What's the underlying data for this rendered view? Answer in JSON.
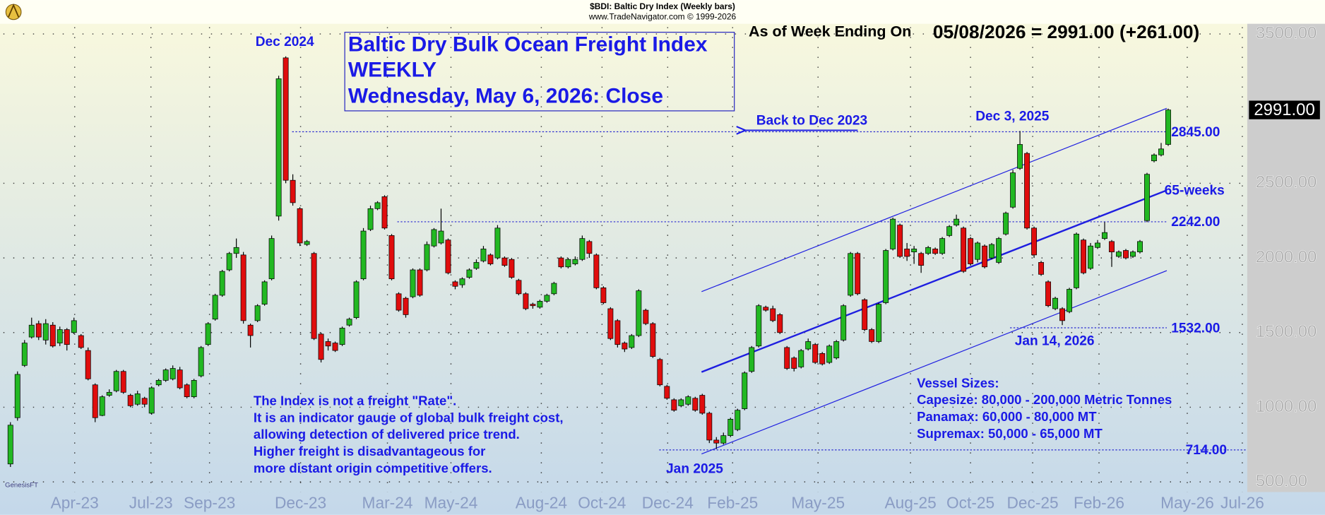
{
  "chart_data": {
    "type": "candlestick",
    "header": [
      "$BDI:  Baltic Dry Index  (Weekly bars)",
      "www.TradeNavigator.com © 1999-2026"
    ],
    "title": [
      "Baltic Dry Bulk Ocean Freight Index",
      "WEEKLY",
      "Wednesday, May 6, 2026: Close"
    ],
    "status_label": "As of Week Ending On",
    "status_value": "05/08/2026 = 2991.00 (+261.00)",
    "last_label": "2991.00",
    "watermark": "GenesisFT",
    "up_color": "#22b822",
    "down_color": "#e00d0d",
    "grid": true,
    "ylim": [
      432,
      3568
    ],
    "yticks": [
      {
        "value": 500,
        "label": "500.00"
      },
      {
        "value": 1000,
        "label": "1000.00"
      },
      {
        "value": 1500,
        "label": "1500.00"
      },
      {
        "value": 2000,
        "label": "2000.00"
      },
      {
        "value": 2500,
        "label": "2500.00"
      },
      {
        "value": 3500,
        "label": "3500.00"
      }
    ],
    "xlim": [
      -1,
      175.2
    ],
    "xticks": [
      {
        "value": 9.1,
        "label": "Apr-23"
      },
      {
        "value": 19.9,
        "label": "Jul-23"
      },
      {
        "value": 28.2,
        "label": "Sep-23"
      },
      {
        "value": 41.1,
        "label": "Dec-23"
      },
      {
        "value": 53.4,
        "label": "Mar-24"
      },
      {
        "value": 62.4,
        "label": "May-24"
      },
      {
        "value": 75.2,
        "label": "Aug-24"
      },
      {
        "value": 83.8,
        "label": "Oct-24"
      },
      {
        "value": 93.1,
        "label": "Dec-24"
      },
      {
        "value": 102.3,
        "label": "Feb-25"
      },
      {
        "value": 114.4,
        "label": "May-25"
      },
      {
        "value": 127.5,
        "label": "Aug-25"
      },
      {
        "value": 136.0,
        "label": "Oct-25"
      },
      {
        "value": 144.8,
        "label": "Dec-25"
      },
      {
        "value": 154.2,
        "label": "Feb-26"
      },
      {
        "value": 166.7,
        "label": "May-26"
      },
      {
        "value": 174.5,
        "label": "Jul-26"
      }
    ],
    "candles": {
      "open": [
        620,
        930,
        1280,
        1470,
        1560,
        1450,
        1550,
        1430,
        1520,
        1500,
        1480,
        1380,
        1150,
        945,
        1080,
        1110,
        1240,
        1080,
        1020,
        1060,
        960,
        1150,
        1180,
        1190,
        1250,
        1150,
        1070,
        1210,
        1420,
        1590,
        1750,
        1920,
        2030,
        2020,
        1550,
        1580,
        1690,
        1860,
        2280,
        3340,
        2520,
        2330,
        2090,
        2030,
        1490,
        1440,
        1430,
        1420,
        1550,
        1600,
        1860,
        2190,
        2330,
        2410,
        2150,
        1760,
        1730,
        1740,
        1920,
        1920,
        2080,
        2100,
        2120,
        1840,
        1820,
        1870,
        1930,
        1980,
        2020,
        2000,
        2000,
        1990,
        1850,
        1760,
        1690,
        1670,
        1710,
        1760,
        2000,
        1940,
        1960,
        1990,
        2110,
        2020,
        1800,
        1660,
        1580,
        1430,
        1400,
        1480,
        1650,
        1560,
        1320,
        1140,
        1050,
        1010,
        1020,
        1060,
        1080,
        960,
        780,
        760,
        810,
        850,
        990,
        1240,
        1410,
        1670,
        1660,
        1620,
        1400,
        1330,
        1270,
        1390,
        1420,
        1360,
        1300,
        1330,
        1450,
        1750,
        2030,
        1720,
        1520,
        1440,
        1700,
        2060,
        2220,
        2060,
        2040,
        2030,
        2030,
        2060,
        2030,
        2150,
        2220,
        2200,
        2130,
        1990,
        2080,
        2000,
        1970,
        2160,
        2340,
        2600,
        2700,
        2200,
        1970,
        1840,
        1660,
        1660,
        1640,
        1800,
        2120,
        1930,
        2070,
        2130,
        2110,
        2010,
        2050,
        2010,
        2040,
        2250,
        2650,
        2690,
        2760
      ],
      "high": [
        900,
        1240,
        1450,
        1600,
        1580,
        1590,
        1570,
        1540,
        1530,
        1600,
        1490,
        1400,
        1160,
        1080,
        1120,
        1250,
        1250,
        1090,
        1110,
        1070,
        1140,
        1190,
        1260,
        1280,
        1270,
        1160,
        1190,
        1410,
        1570,
        1760,
        1920,
        2040,
        2130,
        2040,
        1560,
        1690,
        1850,
        2150,
        3220,
        3350,
        2560,
        2340,
        2120,
        2040,
        1500,
        1460,
        1440,
        1540,
        1600,
        1850,
        2200,
        2350,
        2380,
        2420,
        2160,
        1770,
        1740,
        1930,
        1930,
        2110,
        2200,
        2330,
        2130,
        1850,
        1870,
        1930,
        1990,
        2080,
        2030,
        2220,
        2010,
        2000,
        1860,
        1770,
        1700,
        1720,
        1760,
        1840,
        2010,
        2000,
        2010,
        2150,
        2120,
        2030,
        1810,
        1670,
        1590,
        1440,
        1490,
        1790,
        1660,
        1570,
        1330,
        1150,
        1060,
        1060,
        1080,
        1070,
        1090,
        970,
        800,
        830,
        930,
        990,
        1240,
        1410,
        1690,
        1680,
        1680,
        1630,
        1410,
        1340,
        1390,
        1460,
        1430,
        1370,
        1420,
        1450,
        1690,
        2040,
        2040,
        1730,
        1530,
        1700,
        2060,
        2270,
        2230,
        2100,
        2080,
        2040,
        2080,
        2070,
        2140,
        2220,
        2290,
        2210,
        2140,
        2110,
        2090,
        2100,
        2140,
        2310,
        2590,
        2850,
        2710,
        2210,
        1980,
        1850,
        1740,
        1670,
        1800,
        2170,
        2130,
        2100,
        2120,
        2240,
        2120,
        2050,
        2060,
        2050,
        2120,
        2570,
        2700,
        2770,
        3000
      ],
      "low": [
        600,
        910,
        1270,
        1460,
        1450,
        1420,
        1400,
        1410,
        1380,
        1490,
        1390,
        1180,
        900,
        940,
        1070,
        1100,
        1090,
        1000,
        1010,
        1000,
        950,
        1140,
        1170,
        1180,
        1120,
        1060,
        1060,
        1200,
        1410,
        1580,
        1740,
        1910,
        2000,
        1560,
        1400,
        1570,
        1680,
        1850,
        2250,
        2500,
        2350,
        2080,
        2080,
        1450,
        1300,
        1380,
        1370,
        1410,
        1540,
        1590,
        1850,
        2180,
        2320,
        2190,
        1850,
        1640,
        1600,
        1730,
        1740,
        1910,
        2070,
        2090,
        1890,
        1790,
        1800,
        1860,
        1920,
        1970,
        1950,
        1990,
        1940,
        1860,
        1750,
        1650,
        1660,
        1660,
        1700,
        1750,
        1930,
        1930,
        1950,
        1980,
        2000,
        1790,
        1690,
        1450,
        1400,
        1370,
        1390,
        1470,
        1550,
        1330,
        1140,
        1050,
        970,
        1000,
        1010,
        970,
        950,
        760,
        720,
        750,
        800,
        840,
        980,
        1230,
        1400,
        1640,
        1570,
        1490,
        1250,
        1240,
        1260,
        1380,
        1290,
        1280,
        1290,
        1320,
        1440,
        1740,
        1750,
        1510,
        1430,
        1430,
        1690,
        2050,
        2000,
        1980,
        1960,
        1900,
        2020,
        2020,
        2020,
        2140,
        2210,
        1900,
        1950,
        1970,
        1930,
        1990,
        1960,
        2150,
        2330,
        2590,
        2190,
        2000,
        1880,
        1670,
        1650,
        1550,
        1630,
        1790,
        1890,
        1920,
        2060,
        2120,
        1940,
        2000,
        1990,
        2000,
        2030,
        2240,
        2640,
        2680,
        2750
      ],
      "close": [
        880,
        1220,
        1430,
        1550,
        1470,
        1560,
        1410,
        1520,
        1420,
        1580,
        1400,
        1190,
        930,
        1070,
        1100,
        1240,
        1100,
        1010,
        1090,
        1020,
        1130,
        1180,
        1250,
        1260,
        1130,
        1070,
        1180,
        1400,
        1560,
        1750,
        1910,
        2030,
        2070,
        1580,
        1480,
        1680,
        1840,
        2130,
        3200,
        2520,
        2370,
        2100,
        2110,
        1460,
        1320,
        1410,
        1380,
        1530,
        1590,
        1840,
        2180,
        2330,
        2370,
        2200,
        1860,
        1650,
        1620,
        1920,
        1750,
        2090,
        2190,
        2180,
        1900,
        1810,
        1860,
        1920,
        1970,
        2060,
        1960,
        2200,
        1950,
        1870,
        1760,
        1660,
        1680,
        1710,
        1750,
        1830,
        1940,
        1990,
        1990,
        2130,
        2030,
        1800,
        1700,
        1460,
        1420,
        1390,
        1480,
        1780,
        1560,
        1340,
        1150,
        1060,
        980,
        1050,
        1070,
        980,
        960,
        780,
        760,
        810,
        920,
        980,
        1230,
        1400,
        1680,
        1650,
        1580,
        1500,
        1260,
        1260,
        1380,
        1440,
        1300,
        1290,
        1410,
        1440,
        1680,
        2030,
        1760,
        1520,
        1440,
        1690,
        2050,
        2260,
        2010,
        2010,
        2060,
        1950,
        2070,
        2030,
        2130,
        2210,
        2260,
        1910,
        1960,
        2100,
        1940,
        2090,
        2130,
        2300,
        2570,
        2760,
        2200,
        2020,
        1890,
        1680,
        1730,
        1580,
        1790,
        2160,
        1900,
        2080,
        2100,
        2170,
        2040,
        2040,
        2000,
        2040,
        2110,
        2560,
        2690,
        2730,
        2991
      ]
    },
    "channel": {
      "label": "65-weeks",
      "x": [
        97.9,
        163.8
      ],
      "mid": [
        1236,
        2453
      ],
      "upper": [
        1774,
        3002
      ],
      "lower": [
        687,
        1915
      ]
    },
    "levels": [
      {
        "value": 2845,
        "label": "2845.00",
        "from": 39.9,
        "to": 163.8
      },
      {
        "value": 2242,
        "label": "2242.00",
        "from": 54.8,
        "to": 163.8
      },
      {
        "value": 1532,
        "label": "1532.00",
        "from": 141.6,
        "to": 163.8
      },
      {
        "value": 714,
        "label": "714.00",
        "from": 91.9,
        "to": 175.2
      }
    ],
    "annotations": [
      "Dec 2024",
      "Back to Dec 2023",
      "Dec 3, 2025",
      "Jan 14, 2026",
      "Jan 2025"
    ],
    "notes": [
      "The Index is not a freight \"Rate\".",
      "It is an indicator gauge of global bulk freight cost,",
      "allowing detection of delivered price trend.",
      "Higher freight is disadvantageous for",
      "more distant origin competitive offers."
    ],
    "vessels": [
      "Vessel Sizes:",
      "Capesize: 80,000 - 200,000 Metric Tonnes",
      "Panamax: 60,000 - 80,000 MT",
      "Supremax: 50,000 - 65,000 MT"
    ]
  }
}
